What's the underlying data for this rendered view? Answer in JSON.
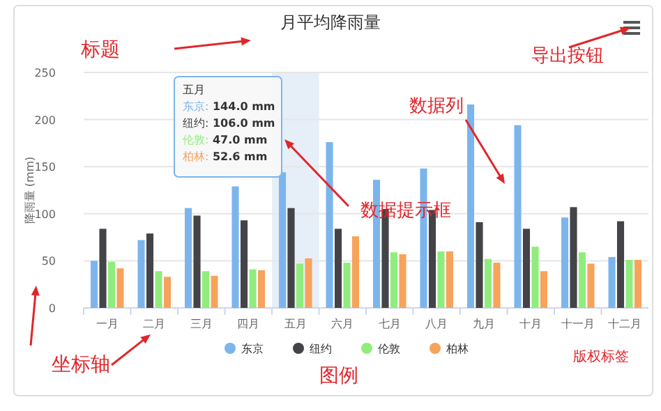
{
  "chart_data": {
    "type": "bar",
    "title": "月平均降雨量",
    "ylabel": "降雨量 (mm)",
    "categories": [
      "一月",
      "二月",
      "三月",
      "四月",
      "五月",
      "六月",
      "七月",
      "八月",
      "九月",
      "十月",
      "十一月",
      "十二月"
    ],
    "series": [
      {
        "name": "东京",
        "color": "#7cb5ec",
        "values": [
          50,
          72,
          106,
          129,
          144.0,
          176,
          136,
          148,
          216,
          194,
          96,
          54
        ]
      },
      {
        "name": "纽约",
        "color": "#434348",
        "values": [
          84,
          79,
          98,
          93,
          106.0,
          84,
          105,
          104,
          91,
          84,
          107,
          92
        ]
      },
      {
        "name": "伦敦",
        "color": "#90ed7d",
        "values": [
          49,
          39,
          39,
          41,
          47.0,
          48,
          59,
          60,
          52,
          65,
          59,
          51
        ]
      },
      {
        "name": "柏林",
        "color": "#f7a35c",
        "values": [
          42,
          33,
          34,
          40,
          52.6,
          76,
          57,
          60,
          48,
          39,
          47,
          51
        ]
      }
    ],
    "ylim": [
      0,
      250
    ],
    "yticks": [
      0,
      50,
      100,
      150,
      200,
      250
    ],
    "grid": "y",
    "legend": "bottom",
    "bands": [
      {
        "axis": "x",
        "from": "五月",
        "to": "五月",
        "color": "#e6eef8"
      }
    ],
    "annotations": [
      "标题",
      "导出按钮",
      "数据列",
      "数据提示框",
      "坐标轴",
      "图例",
      "版权标签",
      "五月",
      "东京: 144.0 mm",
      "纽约: 106.0 mm",
      "伦敦: 47.0 mm",
      "柏林: 52.6 mm"
    ]
  }
}
